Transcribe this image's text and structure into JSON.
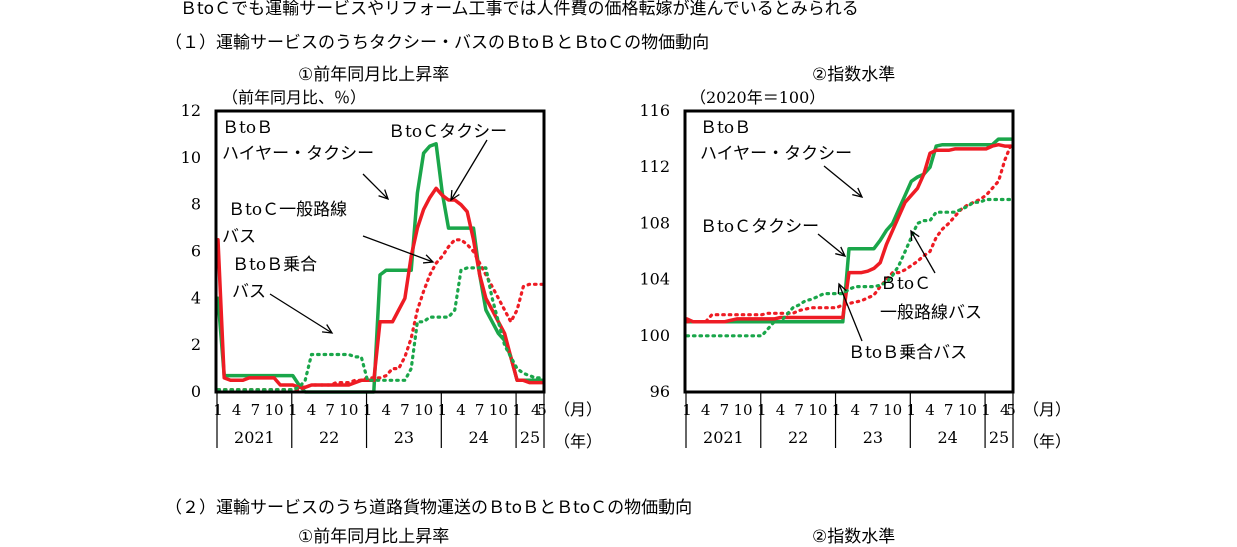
{
  "page": {
    "top_caption": "ＢtoＣでも運輸サービスやリフォーム工事では人件費の価格転嫁が進んでいるとみられる",
    "section1_heading": "（１）運輸サービスのうちタクシー・バスのＢtoＢとＢtoＣの物価動向",
    "section2_heading": "（２）運輸サービスのうち道路貨物運送のＢtoＢとＢtoＣの物価動向",
    "section2_left_title": "①前年同月比上昇率",
    "section2_right_title": "②指数水準"
  },
  "colors": {
    "btob": "#1aa64a",
    "btoc": "#ee1c24",
    "axis": "#000000"
  },
  "chart_data": [
    {
      "type": "line",
      "title": "①前年同月比上昇率",
      "unit": "（前年同月比、％）",
      "ylim": [
        0,
        12
      ],
      "yticks": [
        "0",
        "2",
        "4",
        "6",
        "8",
        "10",
        "12"
      ],
      "x_month_ticks": [
        "1",
        "4",
        "7",
        "10",
        "1",
        "4",
        "7",
        "10",
        "1",
        "4",
        "7",
        "10",
        "1",
        "4",
        "7",
        "10",
        "1",
        "4",
        "5"
      ],
      "x_year_labels": [
        "2021",
        "22",
        "23",
        "24",
        "25"
      ],
      "x_unit_month": "（月）",
      "x_unit_year": "（年）",
      "grid": false,
      "series": [
        {
          "name": "ＢtoＢハイヤー・タクシー",
          "style": "btob-solid",
          "values": [
            4.0,
            0.7,
            0.7,
            0.7,
            0.7,
            0.7,
            0.7,
            0.7,
            0.7,
            0.7,
            0.7,
            0.7,
            0.7,
            0.3,
            0,
            0,
            0,
            0,
            0,
            0,
            0,
            0,
            0,
            0,
            0,
            0,
            5.0,
            5.2,
            5.2,
            5.2,
            5.2,
            5.2,
            8.5,
            10.2,
            10.5,
            10.6,
            8.5,
            7.0,
            7.0,
            7.0,
            7.0,
            7.0,
            5.0,
            3.5,
            3.0,
            2.5,
            2.2,
            1.5,
            0.5,
            0.5,
            0.5,
            0.5,
            0.5
          ]
        },
        {
          "name": "ＢtoＣタクシー",
          "style": "btoc-solid",
          "values": [
            6.5,
            0.6,
            0.5,
            0.5,
            0.5,
            0.6,
            0.6,
            0.6,
            0.6,
            0.6,
            0.3,
            0.3,
            0.3,
            0.2,
            0.2,
            0.3,
            0.3,
            0.3,
            0.3,
            0.3,
            0.3,
            0.3,
            0.4,
            0.5,
            0.5,
            0.5,
            3.0,
            3.0,
            3.0,
            3.5,
            4.0,
            5.8,
            7.0,
            7.8,
            8.3,
            8.7,
            8.4,
            8.2,
            8.2,
            8.0,
            7.7,
            6.5,
            5.0,
            4.0,
            3.5,
            3.0,
            2.5,
            1.5,
            0.5,
            0.5,
            0.4,
            0.4,
            0.4
          ]
        },
        {
          "name": "ＢtoＣ一般路線バス",
          "style": "btoc-dotted",
          "values": [
            0.1,
            0.1,
            0.1,
            0.1,
            0.1,
            0.1,
            0.1,
            0.1,
            0.1,
            0.1,
            0.1,
            0.1,
            0.1,
            0.1,
            0.2,
            0.3,
            0.3,
            0.3,
            0.3,
            0.4,
            0.4,
            0.4,
            0.5,
            0.5,
            0.6,
            0.6,
            0.6,
            0.7,
            1.0,
            1.0,
            1.5,
            2.3,
            3.5,
            4.3,
            5.0,
            5.5,
            5.8,
            6.2,
            6.5,
            6.5,
            6.3,
            6.0,
            5.5,
            5.0,
            4.5,
            4.0,
            3.5,
            3.0,
            3.5,
            4.5,
            4.6,
            4.6,
            4.6
          ]
        },
        {
          "name": "ＢtoＢ乗合バス",
          "style": "btob-dotted",
          "values": [
            0.1,
            0.1,
            0.1,
            0.1,
            0.1,
            0.1,
            0.1,
            0.1,
            0.1,
            0.1,
            0.1,
            0.1,
            0.1,
            0.2,
            0.5,
            1.6,
            1.6,
            1.6,
            1.6,
            1.6,
            1.6,
            1.6,
            1.5,
            1.5,
            0.5,
            0.5,
            0.5,
            0.5,
            0.5,
            0.5,
            0.5,
            1.0,
            3.0,
            3.0,
            3.2,
            3.2,
            3.2,
            3.2,
            3.5,
            5.2,
            5.3,
            5.3,
            5.3,
            5.3,
            4.0,
            3.0,
            2.0,
            1.5,
            1.0,
            0.8,
            0.7,
            0.6,
            0.6
          ]
        }
      ],
      "annotations": [
        "ＢtoＢ",
        "ハイヤー・タクシー",
        "ＢtoＣタクシー",
        "ＢtoＣ一般路線",
        "バス",
        "ＢtoＢ乗合",
        "バス"
      ]
    },
    {
      "type": "line",
      "title": "②指数水準",
      "unit": "（2020年＝100）",
      "ylim": [
        96,
        116
      ],
      "yticks": [
        "96",
        "100",
        "104",
        "108",
        "112",
        "116"
      ],
      "x_month_ticks": [
        "1",
        "4",
        "7",
        "10",
        "1",
        "4",
        "7",
        "10",
        "1",
        "4",
        "7",
        "10",
        "1",
        "4",
        "7",
        "10",
        "1",
        "4",
        "5"
      ],
      "x_year_labels": [
        "2021",
        "22",
        "23",
        "24",
        "25"
      ],
      "x_unit_month": "（月）",
      "x_unit_year": "（年）",
      "grid": false,
      "series": [
        {
          "name": "ＢtoＢハイヤー・タクシー",
          "style": "btob-solid",
          "values": [
            101.0,
            101.0,
            101.0,
            101.0,
            101.0,
            101.0,
            101.0,
            101.0,
            101.0,
            101.0,
            101.0,
            101.0,
            101.0,
            101.0,
            101.0,
            101.0,
            101.0,
            101.0,
            101.0,
            101.0,
            101.0,
            101.0,
            101.0,
            101.0,
            101.0,
            101.0,
            106.2,
            106.2,
            106.2,
            106.2,
            106.2,
            106.8,
            107.5,
            108.0,
            109.0,
            110.0,
            111.0,
            111.3,
            111.5,
            112.0,
            113.5,
            113.6,
            113.6,
            113.6,
            113.6,
            113.6,
            113.6,
            113.6,
            113.6,
            113.6,
            114.0,
            114.0,
            114.0
          ]
        },
        {
          "name": "ＢtoＣタクシー",
          "style": "btoc-solid",
          "values": [
            101.2,
            101.0,
            101.0,
            101.0,
            101.0,
            101.0,
            101.0,
            101.1,
            101.2,
            101.2,
            101.2,
            101.2,
            101.2,
            101.2,
            101.2,
            101.3,
            101.3,
            101.3,
            101.3,
            101.3,
            101.3,
            101.3,
            101.3,
            101.3,
            101.3,
            101.3,
            104.5,
            104.5,
            104.5,
            104.6,
            104.8,
            105.2,
            106.5,
            107.5,
            108.5,
            109.5,
            110.0,
            110.5,
            111.5,
            113.0,
            113.2,
            113.2,
            113.2,
            113.3,
            113.3,
            113.3,
            113.3,
            113.3,
            113.3,
            113.5,
            113.6,
            113.5,
            113.5
          ]
        },
        {
          "name": "ＢtoＣ一般路線バス",
          "style": "btoc-dotted",
          "values": [
            101.0,
            101.0,
            101.0,
            101.0,
            101.5,
            101.5,
            101.5,
            101.5,
            101.5,
            101.5,
            101.5,
            101.5,
            101.5,
            101.6,
            101.6,
            101.6,
            101.6,
            101.6,
            101.8,
            101.9,
            102.0,
            102.0,
            102.0,
            102.0,
            102.0,
            102.2,
            102.3,
            102.4,
            102.5,
            102.7,
            102.9,
            103.5,
            104.0,
            104.5,
            104.5,
            104.7,
            105.0,
            105.3,
            105.7,
            106.0,
            107.0,
            107.6,
            108.0,
            108.5,
            109.0,
            109.3,
            109.5,
            109.7,
            110.0,
            110.5,
            111.0,
            112.5,
            113.6
          ]
        },
        {
          "name": "ＢtoＢ乗合バス",
          "style": "btob-dotted",
          "values": [
            100.0,
            100.0,
            100.0,
            100.0,
            100.0,
            100.0,
            100.0,
            100.0,
            100.0,
            100.0,
            100.0,
            100.0,
            100.0,
            100.5,
            101.0,
            101.0,
            101.5,
            102.0,
            102.2,
            102.5,
            102.6,
            102.8,
            103.0,
            103.0,
            103.0,
            103.0,
            103.3,
            103.5,
            103.5,
            103.5,
            103.5,
            103.6,
            103.8,
            104.3,
            105.0,
            106.0,
            107.0,
            108.0,
            108.2,
            108.2,
            108.8,
            108.8,
            108.8,
            108.8,
            109.0,
            109.2,
            109.5,
            109.5,
            109.7,
            109.7,
            109.7,
            109.7,
            109.7
          ]
        }
      ],
      "annotations": [
        "ＢtoＢ",
        "ハイヤー・タクシー",
        "ＢtoＣタクシー",
        "ＢtoＣ",
        "一般路線バス",
        "ＢtoＢ乗合バス"
      ]
    }
  ]
}
